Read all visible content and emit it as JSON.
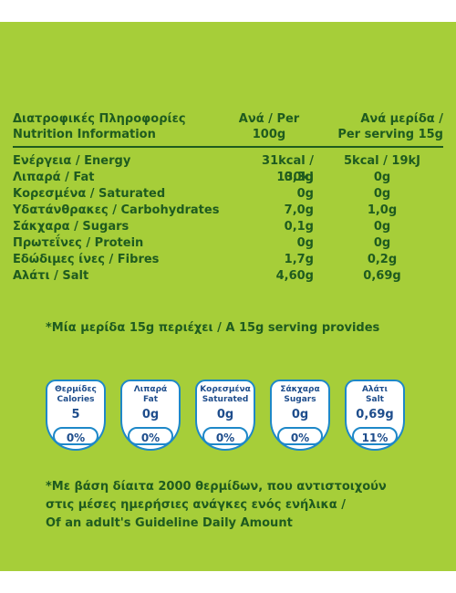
{
  "header": {
    "col1": [
      "Διατροφικές Πληροφορίες",
      "Nutrition Information"
    ],
    "col2": [
      "Ανά / Per",
      "100g"
    ],
    "col3": [
      "Ανά μερίδα /",
      "Per serving 15g"
    ]
  },
  "rows": [
    {
      "label": "Ενέργεια / Energy",
      "per100": "31kcal / 130kJ",
      "serving": "5kcal / 19kJ"
    },
    {
      "label": "Λιπαρά / Fat",
      "per100": "0,3g",
      "serving": "0g"
    },
    {
      "label": "Κορεσμένα / Saturated",
      "per100": "0g",
      "serving": "0g"
    },
    {
      "label": "Υδατάνθρακες / Carbohydrates",
      "per100": "7,0g",
      "serving": "1,0g"
    },
    {
      "label": "Σάκχαρα / Sugars",
      "per100": "0,1g",
      "serving": "0g"
    },
    {
      "label": "Πρωτεΐνες / Protein",
      "per100": "0g",
      "serving": "0g"
    },
    {
      "label": "Εδώδιμες ίνες / Fibres",
      "per100": "1,7g",
      "serving": "0,2g"
    },
    {
      "label": "Αλάτι / Salt",
      "per100": "4,60g",
      "serving": "0,69g"
    }
  ],
  "serving_title": "*Μία μερίδα 15g περιέχει / A 15g serving provides",
  "badges": [
    {
      "label_gr": "Θερμίδες",
      "label_en": "Calories",
      "value": "5",
      "pct": "0%"
    },
    {
      "label_gr": "Λιπαρά",
      "label_en": "Fat",
      "value": "0g",
      "pct": "0%"
    },
    {
      "label_gr": "Κορεσμένα",
      "label_en": "Saturated",
      "value": "0g",
      "pct": "0%"
    },
    {
      "label_gr": "Σάκχαρα",
      "label_en": "Sugars",
      "value": "0g",
      "pct": "0%"
    },
    {
      "label_gr": "Αλάτι",
      "label_en": "Salt",
      "value": "0,69g",
      "pct": "11%"
    }
  ],
  "footnote": [
    "*Με βάση δίαιτα 2000 θερμίδων, που αντιστοιχούν",
    "στις μέσες ημερήσιες ανάγκες ενός ενήλικα /",
    "Of an adult's Guideline Daily Amount"
  ],
  "colors": {
    "panel": "#a6ce39",
    "text": "#1f5b1f",
    "badge_border": "#1e88c8",
    "badge_text": "#1e4d8c"
  }
}
